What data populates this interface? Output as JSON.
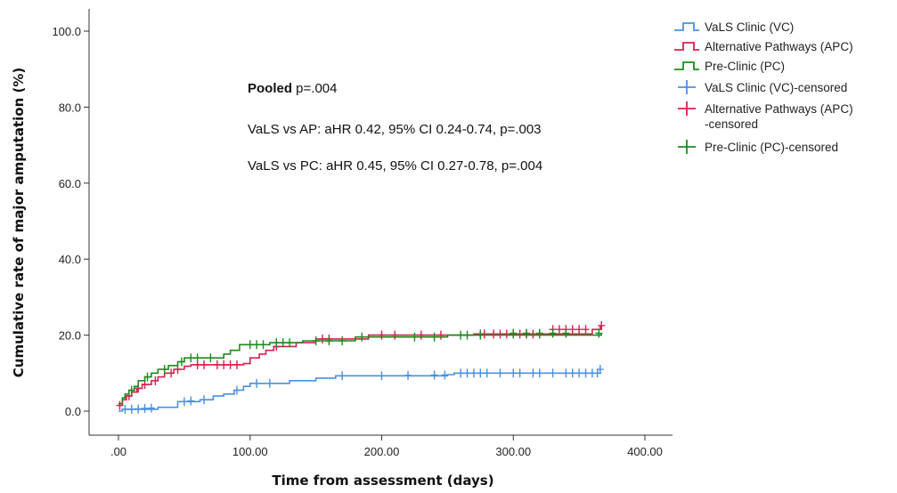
{
  "chart_data": {
    "type": "line",
    "xlabel": "Time from assessment (days)",
    "ylabel": "Cumulative rate of major amputation (%)",
    "xlim": [
      0,
      400
    ],
    "ylim": [
      0,
      100
    ],
    "x_ticks": [
      0,
      100,
      200,
      300,
      400
    ],
    "x_tick_labels": [
      ".00",
      "100.00",
      "200.00",
      "300.00",
      "400.00"
    ],
    "y_ticks": [
      0,
      20,
      40,
      60,
      80,
      100
    ],
    "y_tick_labels": [
      "0.0",
      "20.0",
      "40.0",
      "60.0",
      "80.0",
      "100.0"
    ],
    "grid": false,
    "legend_position": "right",
    "annotations": {
      "pooled_bold": "Pooled",
      "pooled_value": " p=.004",
      "ap_line": "VaLS vs AP: aHR 0.42, 95% CI 0.24-0.74, p=.003",
      "pc_line": "VaLS vs PC: aHR 0.45, 95% CI 0.27-0.78, p=.004"
    },
    "legend": [
      {
        "label": "VaLS Clinic (VC)",
        "kind": "line",
        "color": "#4a90e2"
      },
      {
        "label": "Alternative Pathways (APC)",
        "kind": "line",
        "color": "#d6204e"
      },
      {
        "label": "Pre-Clinic (PC)",
        "kind": "line",
        "color": "#1e8a1e"
      },
      {
        "label": "VaLS Clinic (VC)-censored",
        "kind": "marker",
        "color": "#4a90e2"
      },
      {
        "label": "Alternative Pathways (APC)",
        "label2": "-censored",
        "kind": "marker",
        "color": "#d6204e"
      },
      {
        "label": "Pre-Clinic (PC)-censored",
        "kind": "marker",
        "color": "#1e8a1e"
      }
    ],
    "series": [
      {
        "name": "VaLS Clinic (VC)",
        "color": "#4a90e2",
        "steps": [
          [
            0,
            0
          ],
          [
            3,
            0.5
          ],
          [
            30,
            1
          ],
          [
            45,
            2.5
          ],
          [
            62,
            3
          ],
          [
            72,
            4
          ],
          [
            80,
            4.5
          ],
          [
            88,
            5.5
          ],
          [
            95,
            6.5
          ],
          [
            100,
            7.3
          ],
          [
            130,
            8
          ],
          [
            150,
            8.7
          ],
          [
            165,
            9.3
          ],
          [
            250,
            9.6
          ],
          [
            255,
            10
          ],
          [
            367,
            10
          ]
        ],
        "censored": [
          [
            5,
            0.5
          ],
          [
            10,
            0.5
          ],
          [
            15,
            0.6
          ],
          [
            20,
            0.7
          ],
          [
            25,
            0.8
          ],
          [
            50,
            2.5
          ],
          [
            55,
            2.7
          ],
          [
            65,
            3
          ],
          [
            90,
            5.5
          ],
          [
            105,
            7.3
          ],
          [
            115,
            7.3
          ],
          [
            170,
            9.3
          ],
          [
            200,
            9.3
          ],
          [
            220,
            9.4
          ],
          [
            240,
            9.5
          ],
          [
            248,
            9.5
          ],
          [
            260,
            10
          ],
          [
            265,
            10
          ],
          [
            270,
            10
          ],
          [
            275,
            10
          ],
          [
            280,
            10
          ],
          [
            290,
            10
          ],
          [
            300,
            10
          ],
          [
            305,
            10
          ],
          [
            315,
            10
          ],
          [
            320,
            10
          ],
          [
            330,
            10
          ],
          [
            340,
            10
          ],
          [
            345,
            10
          ],
          [
            350,
            10
          ],
          [
            355,
            10
          ],
          [
            360,
            10
          ],
          [
            364,
            10
          ],
          [
            366,
            11
          ]
        ]
      },
      {
        "name": "Alternative Pathways (APC)",
        "color": "#d6204e",
        "steps": [
          [
            0,
            1.5
          ],
          [
            3,
            3
          ],
          [
            6,
            4
          ],
          [
            10,
            5
          ],
          [
            14,
            6
          ],
          [
            18,
            7
          ],
          [
            25,
            8
          ],
          [
            30,
            9
          ],
          [
            35,
            10
          ],
          [
            42,
            11
          ],
          [
            50,
            11.8
          ],
          [
            55,
            12.2
          ],
          [
            95,
            12.5
          ],
          [
            100,
            14
          ],
          [
            107,
            15
          ],
          [
            112,
            16
          ],
          [
            118,
            17
          ],
          [
            135,
            18
          ],
          [
            150,
            19
          ],
          [
            190,
            20
          ],
          [
            270,
            20.3
          ],
          [
            360,
            21.5
          ],
          [
            366,
            22.5
          ]
        ],
        "censored": [
          [
            1,
            1.5
          ],
          [
            8,
            4
          ],
          [
            15,
            6
          ],
          [
            20,
            7
          ],
          [
            28,
            8
          ],
          [
            40,
            10
          ],
          [
            45,
            11
          ],
          [
            60,
            12.2
          ],
          [
            65,
            12.2
          ],
          [
            75,
            12.2
          ],
          [
            80,
            12.2
          ],
          [
            85,
            12.2
          ],
          [
            90,
            12.2
          ],
          [
            120,
            17
          ],
          [
            155,
            19
          ],
          [
            160,
            19
          ],
          [
            200,
            20
          ],
          [
            210,
            20
          ],
          [
            230,
            20
          ],
          [
            245,
            20
          ],
          [
            275,
            20.3
          ],
          [
            278,
            20.3
          ],
          [
            285,
            20.3
          ],
          [
            290,
            20.3
          ],
          [
            295,
            20.3
          ],
          [
            300,
            20.3
          ],
          [
            305,
            20.3
          ],
          [
            310,
            20.3
          ],
          [
            315,
            20.3
          ],
          [
            320,
            20.3
          ],
          [
            330,
            21.5
          ],
          [
            335,
            21.5
          ],
          [
            340,
            21.5
          ],
          [
            345,
            21.5
          ],
          [
            350,
            21.5
          ],
          [
            355,
            21.5
          ],
          [
            367,
            22.5
          ]
        ]
      },
      {
        "name": "Pre-Clinic (PC)",
        "color": "#1e8a1e",
        "steps": [
          [
            0,
            2
          ],
          [
            3,
            3.5
          ],
          [
            5,
            4.5
          ],
          [
            8,
            5.5
          ],
          [
            12,
            6.5
          ],
          [
            15,
            8
          ],
          [
            20,
            9
          ],
          [
            25,
            10
          ],
          [
            30,
            11
          ],
          [
            38,
            12
          ],
          [
            45,
            13
          ],
          [
            50,
            14
          ],
          [
            80,
            15
          ],
          [
            85,
            16
          ],
          [
            92,
            17.5
          ],
          [
            115,
            18
          ],
          [
            140,
            18.5
          ],
          [
            180,
            19.5
          ],
          [
            250,
            20
          ],
          [
            367,
            20.5
          ]
        ],
        "censored": [
          [
            10,
            5.5
          ],
          [
            22,
            9
          ],
          [
            35,
            11
          ],
          [
            48,
            13
          ],
          [
            55,
            14
          ],
          [
            60,
            14
          ],
          [
            70,
            14
          ],
          [
            100,
            17.5
          ],
          [
            105,
            17.5
          ],
          [
            110,
            17.5
          ],
          [
            120,
            18
          ],
          [
            125,
            18
          ],
          [
            130,
            18
          ],
          [
            150,
            18.5
          ],
          [
            160,
            18.5
          ],
          [
            170,
            18.5
          ],
          [
            185,
            19.5
          ],
          [
            225,
            19.5
          ],
          [
            240,
            19.5
          ],
          [
            260,
            20
          ],
          [
            265,
            20
          ],
          [
            275,
            20
          ],
          [
            300,
            20.5
          ],
          [
            310,
            20.5
          ],
          [
            320,
            20.5
          ],
          [
            330,
            20.5
          ],
          [
            340,
            20.5
          ],
          [
            365,
            20.5
          ]
        ]
      }
    ]
  }
}
